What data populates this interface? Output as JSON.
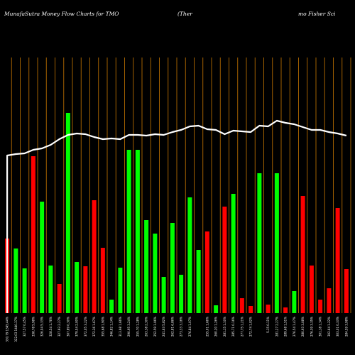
{
  "title": {
    "left": "MunafaSutra  Money Flow  Charts for TMO",
    "middle": "(Ther",
    "right": "mo  Fisher Sci"
  },
  "colors": {
    "background": "#000000",
    "grid": "#b36a00",
    "up": "#00ff00",
    "down": "#ff0000",
    "line": "#ffffff"
  },
  "chart_data": {
    "type": "bar",
    "xlabels": [
      "330.79 1345.44%",
      "322.03 1440.37%",
      "327.57 0.45%",
      "338.78 5.98%",
      "326.04 5.33%",
      "328.54 1.76%",
      "327.93 2.27%",
      "307.89 0.30%",
      "379.54 2.00%",
      "372.05 3.22%",
      "372.36 1.67%",
      "355.68 1.90%",
      "346.82 1.14%",
      "313.98 1.66%",
      "290.95 3.24%",
      "255.70 1.28%",
      "263.38 2.30%",
      "252.59 1.06%",
      "241.63 5.82%",
      "262.81 6.86%",
      "273.33 3.16%",
      "276.84 1.07%",
      "",
      "255.01 1.66%",
      "260.20 1.26%",
      "281.15 1.10%",
      "285.71 0.16%",
      "277.75 1.21%",
      "272.74 1.02%",
      "",
      "5.15 0.11%",
      "281.27 2.27%",
      "289.68 1.51%",
      "276.54 1.47%",
      "280.93 3.08%",
      "276.39 3.35%",
      "301.18 1.34%",
      "302.64 1.22%",
      "303.01 0.33%",
      "284.59 3.98%"
    ],
    "series": [
      {
        "kind": "bars",
        "values": [
          {
            "v": 105,
            "dir": "down"
          },
          {
            "v": 91,
            "dir": "up"
          },
          {
            "v": 63,
            "dir": "up"
          },
          {
            "v": 221,
            "dir": "down"
          },
          {
            "v": 157,
            "dir": "up"
          },
          {
            "v": 67,
            "dir": "up"
          },
          {
            "v": 41,
            "dir": "down"
          },
          {
            "v": 282,
            "dir": "up"
          },
          {
            "v": 72,
            "dir": "up"
          },
          {
            "v": 66,
            "dir": "down"
          },
          {
            "v": 159,
            "dir": "down"
          },
          {
            "v": 92,
            "dir": "down"
          },
          {
            "v": 19,
            "dir": "up"
          },
          {
            "v": 64,
            "dir": "up"
          },
          {
            "v": 230,
            "dir": "up"
          },
          {
            "v": 230,
            "dir": "up"
          },
          {
            "v": 131,
            "dir": "up"
          },
          {
            "v": 112,
            "dir": "up"
          },
          {
            "v": 51,
            "dir": "up"
          },
          {
            "v": 127,
            "dir": "up"
          },
          {
            "v": 54,
            "dir": "up"
          },
          {
            "v": 163,
            "dir": "up"
          },
          {
            "v": 89,
            "dir": "up"
          },
          {
            "v": 115,
            "dir": "down"
          },
          {
            "v": 11,
            "dir": "up"
          },
          {
            "v": 150,
            "dir": "down"
          },
          {
            "v": 168,
            "dir": "up"
          },
          {
            "v": 21,
            "dir": "down"
          },
          {
            "v": 10,
            "dir": "down"
          },
          {
            "v": 197,
            "dir": "up"
          },
          {
            "v": 12,
            "dir": "down"
          },
          {
            "v": 197,
            "dir": "up"
          },
          {
            "v": 8,
            "dir": "down"
          },
          {
            "v": 31,
            "dir": "up"
          },
          {
            "v": 165,
            "dir": "down"
          },
          {
            "v": 67,
            "dir": "down"
          },
          {
            "v": 19,
            "dir": "down"
          },
          {
            "v": 35,
            "dir": "down"
          },
          {
            "v": 148,
            "dir": "down"
          },
          {
            "v": 62,
            "dir": "down"
          }
        ]
      },
      {
        "kind": "line",
        "values": [
          222,
          224,
          225,
          230,
          232,
          237,
          245,
          251,
          253,
          252,
          248,
          245,
          246,
          245,
          251,
          251,
          250,
          252,
          251,
          255,
          258,
          263,
          264,
          259,
          258,
          252,
          257,
          256,
          255,
          264,
          263,
          271,
          268,
          266,
          262,
          258,
          258,
          255,
          253,
          250
        ]
      }
    ],
    "ylim": [
      0,
      360
    ],
    "grid": true
  }
}
